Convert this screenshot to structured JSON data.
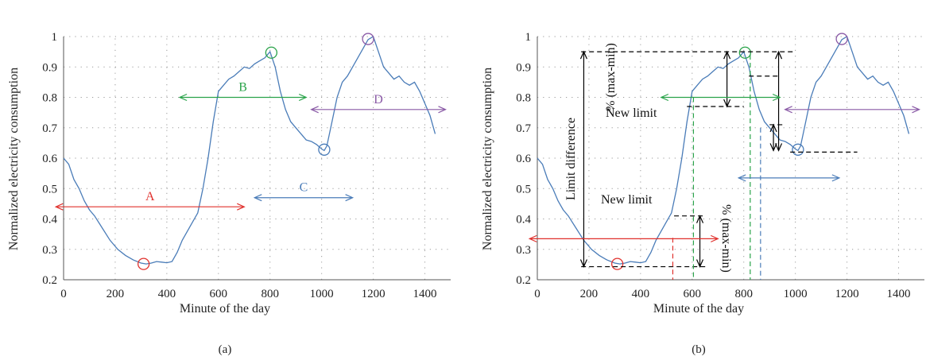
{
  "colors": {
    "red": "#e0302c",
    "green": "#2aa34a",
    "blue": "#4a7cb8",
    "purple": "#8a5aa6",
    "black": "#000000"
  },
  "chart_data": [
    {
      "panel": "(a)",
      "type": "line",
      "xlabel": "Minute of the day",
      "ylabel": "Normalized electricity consumption",
      "xlim": [
        0,
        1500
      ],
      "ylim": [
        0.2,
        1.0
      ],
      "xticks": [
        "0",
        "200",
        "400",
        "600",
        "800",
        "1000",
        "1200",
        "1400"
      ],
      "yticks": [
        "0.2",
        "0.3",
        "0.4",
        "0.5",
        "0.6",
        "0.7",
        "0.8",
        "0.9",
        "1"
      ],
      "grid": "dotted",
      "series": [
        {
          "x": [
            0,
            20,
            40,
            60,
            80,
            100,
            120,
            150,
            180,
            210,
            240,
            270,
            300,
            320,
            340,
            360,
            380,
            400,
            420,
            440,
            460,
            480,
            500,
            520,
            540,
            560,
            580,
            600,
            620,
            640,
            660,
            680,
            700,
            720,
            740,
            760,
            780,
            800,
            820,
            840,
            860,
            880,
            900,
            920,
            940,
            960,
            980,
            1000,
            1010,
            1020,
            1040,
            1060,
            1080,
            1100,
            1120,
            1140,
            1160,
            1180,
            1200,
            1220,
            1240,
            1260,
            1280,
            1300,
            1320,
            1340,
            1360,
            1380,
            1400,
            1420,
            1440
          ],
          "values": [
            0.6,
            0.58,
            0.53,
            0.5,
            0.46,
            0.43,
            0.41,
            0.37,
            0.33,
            0.3,
            0.28,
            0.265,
            0.255,
            0.252,
            0.255,
            0.26,
            0.258,
            0.256,
            0.26,
            0.29,
            0.33,
            0.36,
            0.39,
            0.42,
            0.5,
            0.6,
            0.72,
            0.82,
            0.84,
            0.86,
            0.87,
            0.885,
            0.9,
            0.895,
            0.91,
            0.92,
            0.93,
            0.95,
            0.9,
            0.82,
            0.76,
            0.72,
            0.7,
            0.68,
            0.66,
            0.655,
            0.645,
            0.63,
            0.625,
            0.64,
            0.72,
            0.8,
            0.85,
            0.87,
            0.9,
            0.93,
            0.96,
            0.99,
            1.0,
            0.95,
            0.9,
            0.88,
            0.86,
            0.87,
            0.85,
            0.84,
            0.85,
            0.82,
            0.78,
            0.74,
            0.68
          ]
        }
      ],
      "markers": [
        {
          "x": 310,
          "y": 0.252,
          "color": "red"
        },
        {
          "x": 805,
          "y": 0.947,
          "color": "green"
        },
        {
          "x": 1010,
          "y": 0.628,
          "color": "blue"
        },
        {
          "x": 1180,
          "y": 0.992,
          "color": "purple"
        }
      ],
      "ranges": [
        {
          "label": "A",
          "x": [
            -30,
            700
          ],
          "y": 0.44,
          "color": "red"
        },
        {
          "label": "B",
          "x": [
            450,
            940
          ],
          "y": 0.8,
          "color": "green"
        },
        {
          "label": "C",
          "x": [
            740,
            1120
          ],
          "y": 0.47,
          "color": "blue"
        },
        {
          "label": "D",
          "x": [
            960,
            1480
          ],
          "y": 0.76,
          "color": "purple"
        }
      ],
      "label": "(a)"
    },
    {
      "panel": "(b)",
      "type": "line",
      "xlabel": "Minute of the day",
      "ylabel": "Normalized electricity consumption",
      "xlim": [
        0,
        1500
      ],
      "ylim": [
        0.2,
        1.0
      ],
      "xticks": [
        "0",
        "200",
        "400",
        "600",
        "800",
        "1000",
        "1200",
        "1400"
      ],
      "yticks": [
        "0.2",
        "0.3",
        "0.4",
        "0.5",
        "0.6",
        "0.7",
        "0.8",
        "0.9",
        "1"
      ],
      "grid": "dotted",
      "annotations": {
        "limit_difference": "Limit difference",
        "new_limit_top": "New limit",
        "new_limit_bottom": "New limit",
        "pct_top": "% (max-min)",
        "pct_bottom": "% (max-min)"
      },
      "ranges": [
        {
          "x": [
            -30,
            700
          ],
          "y": 0.335,
          "color": "red"
        },
        {
          "x": [
            480,
            940
          ],
          "y": 0.8,
          "color": "green"
        },
        {
          "x": [
            780,
            1170
          ],
          "y": 0.535,
          "color": "blue"
        },
        {
          "x": [
            960,
            1480
          ],
          "y": 0.76,
          "color": "purple"
        }
      ],
      "label": "(b)"
    }
  ]
}
